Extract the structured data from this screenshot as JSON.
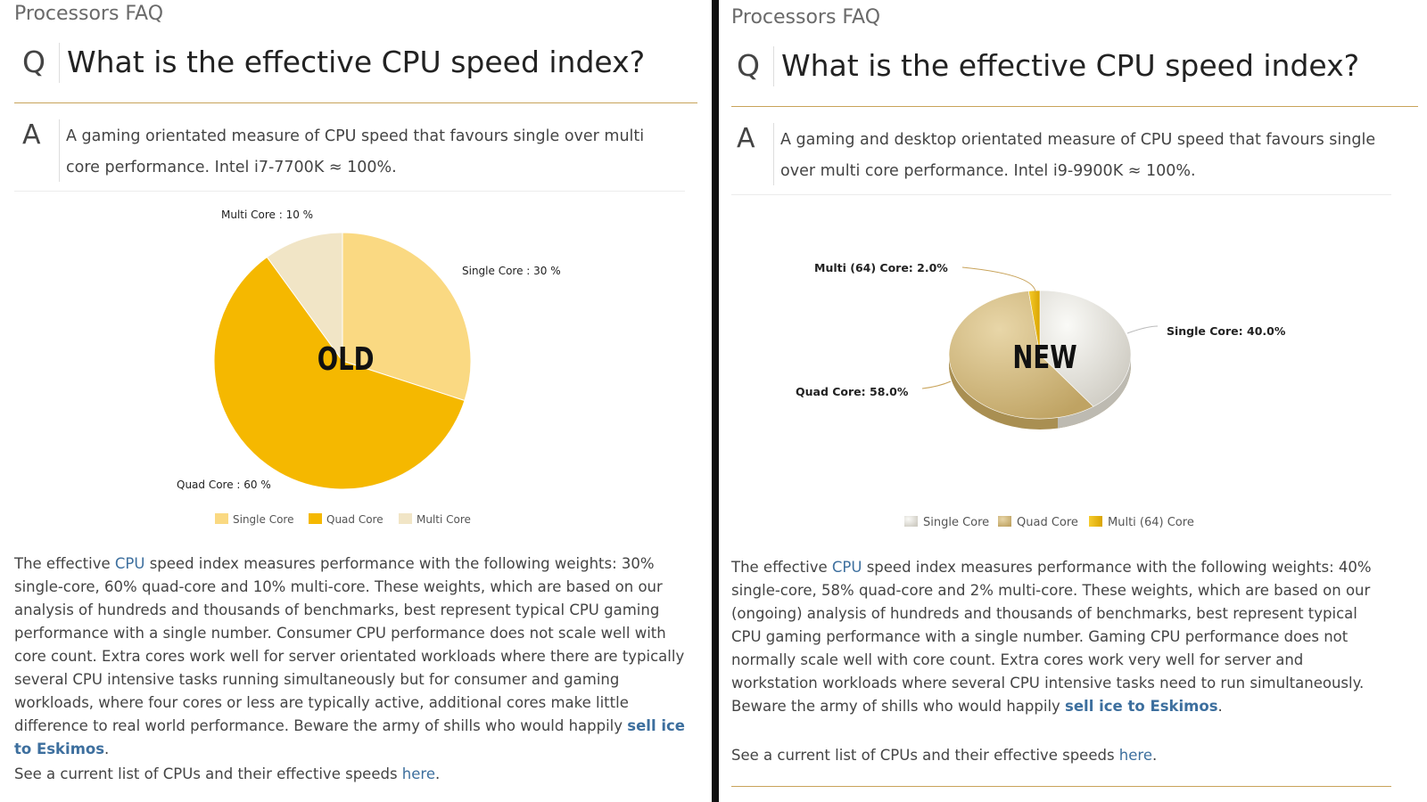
{
  "old": {
    "section_title": "Processors FAQ",
    "q_label": "Q",
    "question": "What is the effective CPU speed index?",
    "a_label": "A",
    "answer": "A gaming orientated measure of CPU speed that favours single over multi core performance. Intel i7-7700K ≈ 100%.",
    "chart_data": {
      "type": "pie",
      "overlay_label": "OLD",
      "slices": [
        {
          "name": "Single Core",
          "value": 30,
          "label": "Single Core : 30 %",
          "color": "#FAD982"
        },
        {
          "name": "Quad Core",
          "value": 60,
          "label": "Quad Core : 60 %",
          "color": "#F5B800"
        },
        {
          "name": "Multi Core",
          "value": 10,
          "label": "Multi Core : 10 %",
          "color": "#F1E5C6"
        }
      ],
      "legend_position": "bottom"
    },
    "desc_1": "The effective ",
    "desc_link": "CPU",
    "desc_2": " speed index measures performance with the following weights: 30% single-core, 60% quad-core and 10% multi-core. These weights, which are based on our analysis of hundreds and thousands of benchmarks, best represent typical CPU gaming performance with a single number. Consumer CPU performance does not scale well with core count. Extra cores work well for server orientated workloads where there are typically several CPU intensive tasks running simultaneously but for consumer and gaming workloads, where four cores or less are typically active, additional cores make little difference to real world performance. Beware the army of shills who would happily ",
    "desc_link2": "sell ice to Eskimos",
    "desc_3": ".",
    "seealso_text": "See a current list of CPUs and their effective speeds ",
    "seealso_link": "here",
    "seealso_end": "."
  },
  "new": {
    "section_title": "Processors FAQ",
    "q_label": "Q",
    "question": "What is the effective CPU speed index?",
    "a_label": "A",
    "answer": "A gaming and desktop orientated measure of CPU speed that favours single over multi core performance. Intel i9-9900K ≈ 100%.",
    "chart_data": {
      "type": "pie",
      "style": "3d",
      "overlay_label": "NEW",
      "slices": [
        {
          "name": "Single Core",
          "value": 40,
          "label": "Single Core: 40.0%",
          "color": "#E6E4DE"
        },
        {
          "name": "Quad Core",
          "value": 58,
          "label": "Quad Core: 58.0%",
          "color": "#D4BC85"
        },
        {
          "name": "Multi (64) Core",
          "value": 2,
          "label": "Multi (64) Core: 2.0%",
          "color": "#EFB800"
        }
      ],
      "legend_position": "bottom"
    },
    "desc_1": "The effective ",
    "desc_link": "CPU",
    "desc_2": " speed index measures performance with the following weights: 40% single-core, 58% quad-core and 2% multi-core. These weights, which are based on our (ongoing) analysis of hundreds and thousands of benchmarks, best represent typical CPU gaming performance with a single number. Gaming CPU performance does not normally scale well with core count. Extra cores work very well for server and workstation workloads where several CPU intensive tasks need to run simultaneously. Beware the army of shills who would happily ",
    "desc_link2": "sell ice to Eskimos",
    "desc_3": ".",
    "seealso_text": "See a current list of CPUs and their effective speeds ",
    "seealso_link": "here",
    "seealso_end": "."
  }
}
